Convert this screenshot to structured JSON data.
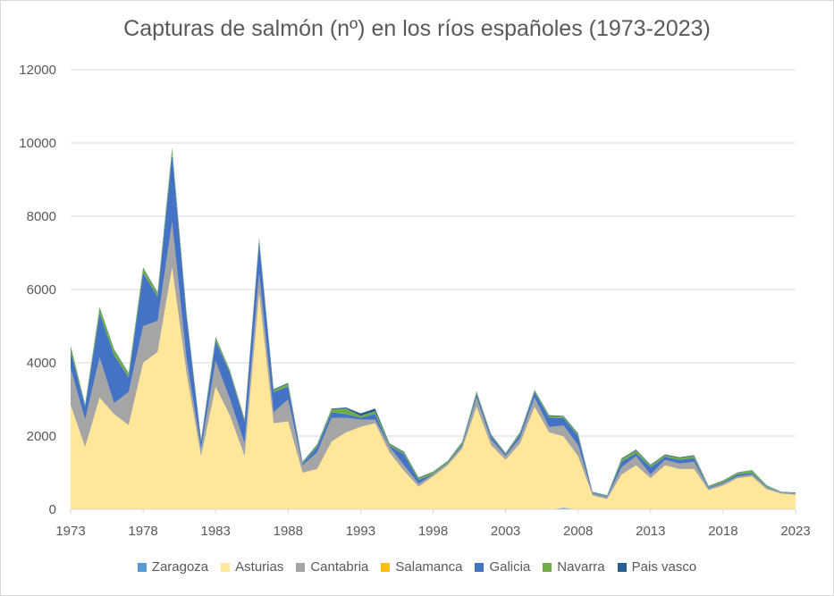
{
  "chart_data": {
    "type": "area",
    "stacked": true,
    "title": "Capturas de salmón (nº) en los ríos españoles (1973-2023)",
    "xlabel": "",
    "ylabel": "",
    "ylim": [
      0,
      12000
    ],
    "yticks": [
      "0",
      "2000",
      "4000",
      "6000",
      "8000",
      "10000",
      "12000"
    ],
    "xticks": [
      "1973",
      "1978",
      "1983",
      "1988",
      "1993",
      "1998",
      "2003",
      "2008",
      "2013",
      "2018",
      "2023"
    ],
    "grid": true,
    "legend_position": "bottom",
    "x": [
      1973,
      1974,
      1975,
      1976,
      1977,
      1978,
      1979,
      1980,
      1981,
      1982,
      1983,
      1984,
      1985,
      1986,
      1987,
      1988,
      1989,
      1990,
      1991,
      1992,
      1993,
      1994,
      1995,
      1996,
      1997,
      1998,
      1999,
      2000,
      2001,
      2002,
      2003,
      2004,
      2005,
      2006,
      2007,
      2008,
      2009,
      2010,
      2011,
      2012,
      2013,
      2014,
      2015,
      2016,
      2017,
      2018,
      2019,
      2020,
      2021,
      2022,
      2023
    ],
    "series": [
      {
        "name": "Zaragoza",
        "color": "#5b9bd5",
        "values": [
          0,
          0,
          0,
          0,
          0,
          0,
          0,
          0,
          0,
          0,
          0,
          0,
          0,
          0,
          0,
          0,
          0,
          0,
          0,
          0,
          0,
          0,
          0,
          0,
          0,
          0,
          0,
          0,
          0,
          0,
          0,
          0,
          0,
          0,
          40,
          0,
          0,
          0,
          0,
          0,
          0,
          0,
          0,
          0,
          0,
          0,
          0,
          0,
          0,
          0,
          0
        ]
      },
      {
        "name": "Asturias",
        "color": "#ffe699",
        "values": [
          2850,
          1700,
          3050,
          2600,
          2300,
          4000,
          4300,
          6600,
          3700,
          1450,
          3350,
          2550,
          1450,
          5900,
          2350,
          2400,
          1000,
          1100,
          1850,
          2100,
          2250,
          2350,
          1550,
          1050,
          620,
          900,
          1200,
          1650,
          2800,
          1750,
          1350,
          1800,
          2800,
          2100,
          1950,
          1450,
          380,
          280,
          950,
          1200,
          850,
          1200,
          1100,
          1100,
          520,
          650,
          850,
          900,
          550,
          430,
          400
        ]
      },
      {
        "name": "Cantabria",
        "color": "#a5a5a5",
        "values": [
          1000,
          750,
          1100,
          300,
          900,
          1000,
          850,
          1250,
          400,
          200,
          700,
          450,
          350,
          550,
          300,
          600,
          200,
          450,
          650,
          400,
          200,
          100,
          150,
          150,
          80,
          50,
          50,
          80,
          250,
          150,
          100,
          150,
          250,
          150,
          300,
          300,
          50,
          50,
          200,
          250,
          100,
          150,
          150,
          200,
          50,
          50,
          50,
          50,
          50,
          20,
          20
        ]
      },
      {
        "name": "Salamanca",
        "color": "#ffc000",
        "values": [
          0,
          0,
          0,
          0,
          0,
          0,
          0,
          0,
          0,
          0,
          0,
          0,
          0,
          0,
          0,
          0,
          0,
          0,
          0,
          0,
          0,
          0,
          0,
          0,
          0,
          0,
          0,
          0,
          0,
          0,
          0,
          0,
          0,
          0,
          0,
          0,
          0,
          0,
          0,
          0,
          0,
          0,
          0,
          0,
          0,
          0,
          0,
          0,
          0,
          0,
          0
        ]
      },
      {
        "name": "Galicia",
        "color": "#4472c4",
        "values": [
          480,
          350,
          1200,
          1300,
          400,
          1450,
          650,
          1850,
          1150,
          200,
          550,
          700,
          600,
          850,
          550,
          350,
          50,
          150,
          150,
          100,
          50,
          150,
          30,
          300,
          100,
          20,
          20,
          50,
          100,
          100,
          50,
          100,
          150,
          250,
          200,
          250,
          20,
          20,
          150,
          80,
          200,
          80,
          100,
          100,
          30,
          30,
          50,
          40,
          20,
          10,
          10
        ]
      },
      {
        "name": "Navarra",
        "color": "#70ad47",
        "values": [
          120,
          50,
          150,
          150,
          100,
          130,
          100,
          150,
          90,
          40,
          90,
          60,
          50,
          100,
          60,
          80,
          30,
          50,
          80,
          150,
          50,
          80,
          50,
          50,
          50,
          50,
          40,
          50,
          50,
          30,
          30,
          40,
          40,
          50,
          40,
          50,
          20,
          20,
          70,
          80,
          50,
          50,
          50,
          60,
          30,
          50,
          50,
          70,
          30,
          10,
          20
        ]
      },
      {
        "name": "Pais vasco",
        "color": "#255e91",
        "values": [
          20,
          20,
          20,
          20,
          20,
          20,
          20,
          20,
          20,
          20,
          20,
          20,
          20,
          20,
          20,
          20,
          20,
          20,
          20,
          30,
          70,
          70,
          20,
          20,
          20,
          10,
          10,
          10,
          20,
          20,
          10,
          20,
          20,
          20,
          20,
          20,
          10,
          10,
          20,
          20,
          20,
          20,
          20,
          20,
          10,
          10,
          10,
          10,
          10,
          10,
          10
        ]
      }
    ]
  }
}
